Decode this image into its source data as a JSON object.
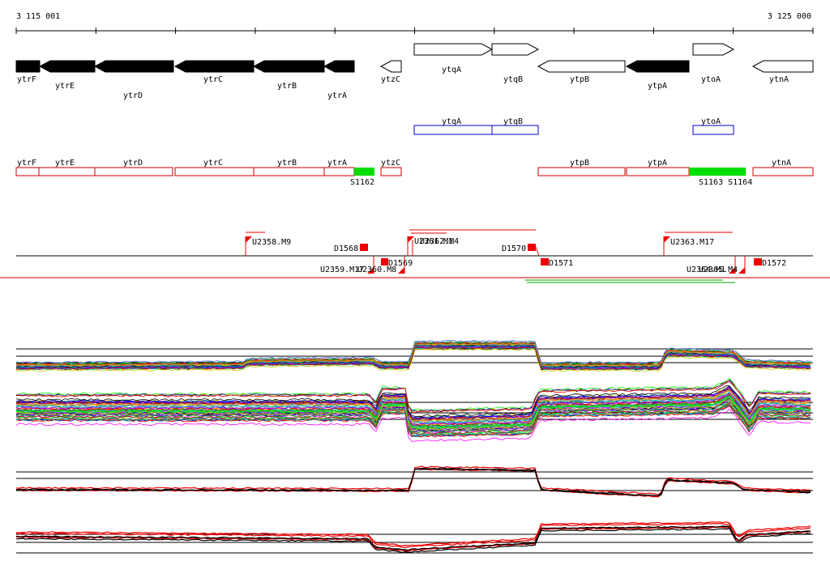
{
  "ruler": {
    "start_label": "3 115 001",
    "end_label": "3 125 000"
  },
  "track1_genes": [
    {
      "name": "ytrF",
      "strand": "-",
      "filled": true
    },
    {
      "name": "ytrE",
      "strand": "-",
      "filled": true
    },
    {
      "name": "ytrD",
      "strand": "-",
      "filled": true
    },
    {
      "name": "ytrC",
      "strand": "-",
      "filled": true
    },
    {
      "name": "ytrB",
      "strand": "-",
      "filled": true
    },
    {
      "name": "ytrA",
      "strand": "-",
      "filled": true
    },
    {
      "name": "ytzC",
      "strand": "-",
      "filled": false
    },
    {
      "name": "ytqA",
      "strand": "+",
      "filled": false
    },
    {
      "name": "ytqB",
      "strand": "+",
      "filled": false
    },
    {
      "name": "ytpB",
      "strand": "-",
      "filled": false
    },
    {
      "name": "ytpA",
      "strand": "-",
      "filled": true
    },
    {
      "name": "ytoA",
      "strand": "+",
      "filled": false
    },
    {
      "name": "ytnA",
      "strand": "-",
      "filled": false
    }
  ],
  "track2_boxes": [
    {
      "name": "ytqA",
      "color": "#0000cc"
    },
    {
      "name": "ytqB",
      "color": "#0000cc"
    },
    {
      "name": "ytoA",
      "color": "#0000cc"
    }
  ],
  "track3_boxes": [
    {
      "name": "ytrF",
      "color": "#cc0000"
    },
    {
      "name": "ytrE",
      "color": "#cc0000"
    },
    {
      "name": "ytrD",
      "color": "#cc0000"
    },
    {
      "name": "ytrC",
      "color": "#cc0000"
    },
    {
      "name": "ytrB",
      "color": "#cc0000"
    },
    {
      "name": "ytrA",
      "color": "#cc0000"
    },
    {
      "name": "ytzC",
      "color": "#cc0000"
    },
    {
      "name": "ytpB",
      "color": "#cc0000"
    },
    {
      "name": "ytpA",
      "color": "#cc0000"
    },
    {
      "name": "ytnA",
      "color": "#cc0000"
    }
  ],
  "track3_green": [
    {
      "label": "S1162",
      "color": "#00dd00"
    },
    {
      "label": "S1163 S1164",
      "color": "#00dd00"
    }
  ],
  "features": {
    "upper": [
      "U2358.M9",
      "U2361.M1",
      "U2362.M4",
      "U2363.M17"
    ],
    "d_labels": [
      "D1568",
      "D1569",
      "D1570",
      "D1571",
      "D1572"
    ],
    "lower": [
      "U2359.M17",
      "U2360.M8",
      "U2364.M1",
      "U2365.M4"
    ]
  },
  "colors": {
    "feature_red": "#ee0000",
    "green_line": "#00aa00",
    "separator": "#cc0000"
  }
}
